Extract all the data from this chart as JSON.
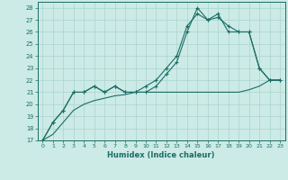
{
  "xlabel": "Humidex (Indice chaleur)",
  "xlim": [
    -0.5,
    23.5
  ],
  "ylim": [
    17,
    28.5
  ],
  "yticks": [
    17,
    18,
    19,
    20,
    21,
    22,
    23,
    24,
    25,
    26,
    27,
    28
  ],
  "xticks": [
    0,
    1,
    2,
    3,
    4,
    5,
    6,
    7,
    8,
    9,
    10,
    11,
    12,
    13,
    14,
    15,
    16,
    17,
    18,
    19,
    20,
    21,
    22,
    23
  ],
  "bg_color": "#cceae6",
  "grid_color": "#aad4ce",
  "line_color": "#1a6e64",
  "line1_x": [
    0,
    1,
    2,
    3,
    4,
    5,
    6,
    7,
    8,
    9,
    10,
    11,
    12,
    13,
    14,
    15,
    16,
    17,
    18,
    19,
    20,
    21,
    22,
    23
  ],
  "line1_y": [
    17,
    18.5,
    19.5,
    21.0,
    21.0,
    21.5,
    21.0,
    21.5,
    21.0,
    21.0,
    21.0,
    21.5,
    22.5,
    23.5,
    26.0,
    28.0,
    27.0,
    27.2,
    26.5,
    26.0,
    26.0,
    23.0,
    22.0,
    22.0
  ],
  "line2_x": [
    0,
    1,
    2,
    3,
    4,
    5,
    6,
    7,
    8,
    9,
    10,
    11,
    12,
    13,
    14,
    15,
    16,
    17,
    18,
    19,
    20,
    21,
    22,
    23
  ],
  "line2_y": [
    17,
    18.5,
    19.5,
    21.0,
    21.0,
    21.5,
    21.0,
    21.5,
    21.0,
    21.0,
    21.5,
    22.0,
    23.0,
    24.0,
    26.5,
    27.5,
    27.0,
    27.5,
    26.0,
    26.0,
    26.0,
    23.0,
    22.0,
    22.0
  ],
  "line3_x": [
    0,
    1,
    2,
    3,
    4,
    5,
    6,
    7,
    8,
    9,
    10,
    11,
    12,
    13,
    14,
    15,
    16,
    17,
    18,
    19,
    20,
    21,
    22,
    23
  ],
  "line3_y": [
    17,
    17.5,
    18.5,
    19.5,
    20.0,
    20.3,
    20.5,
    20.7,
    20.8,
    21.0,
    21.0,
    21.0,
    21.0,
    21.0,
    21.0,
    21.0,
    21.0,
    21.0,
    21.0,
    21.0,
    21.2,
    21.5,
    22.0,
    22.0
  ]
}
